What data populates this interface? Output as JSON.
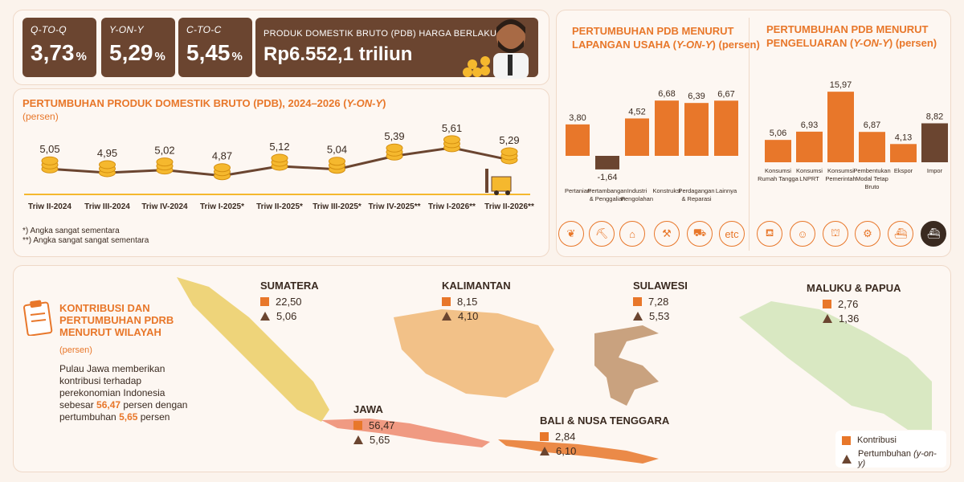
{
  "kpis": [
    {
      "label": "Q-TO-Q",
      "value": "3,73",
      "unit": "%"
    },
    {
      "label": "Y-ON-Y",
      "value": "5,29",
      "unit": "%"
    },
    {
      "label": "C-TO-C",
      "value": "5,45",
      "unit": "%"
    }
  ],
  "pdb_card": {
    "label": "PRODUK DOMESTIK BRUTO (PDB) HARGA BERLAKU",
    "value": "Rp6.552,1 triliun"
  },
  "line_title": "PERTUMBUHAN PRODUK DOMESTIK BRUTO (PDB), 2024–2026 (",
  "line_title_em": "Y-ON-Y",
  "line_title_end": ")",
  "line_unit": "(persen)",
  "notes": [
    "*) Angka sangat sementara",
    "**) Angka sangat sangat sementara"
  ],
  "bar1_title_a": "PERTUMBUHAN PDB MENURUT",
  "bar1_title_b": "LAPANGAN USAHA (",
  "bar1_title_em": "Y-ON-Y",
  "bar1_title_c": ") (persen)",
  "bar2_title_a": "PERTUMBUHAN PDB MENURUT",
  "bar2_title_b": "PENGELUARAN (",
  "bar2_title_em": "Y-ON-Y",
  "bar2_title_c": ") (persen)",
  "icons_usaha": [
    "leaf-icon",
    "oil-pump-icon",
    "factory-icon",
    "crane-icon",
    "truck-icon",
    "handshake-icon",
    "etc-icon"
  ],
  "icons_pengeluaran": [
    "shopping-icon",
    "people-icon",
    "government-icon",
    "construction-icon",
    "ship-export-icon",
    "ship-import-icon"
  ],
  "etc_label": "etc",
  "map_section": {
    "title": [
      "KONTRIBUSI DAN",
      "PERTUMBUHAN PDRB",
      "MENURUT WILAYAH"
    ],
    "unit": "(persen)",
    "desc_1": "Pulau Jawa memberikan kontribusi terhadap perekonomian Indonesia sebesar ",
    "desc_val1": "56,47",
    "desc_2": " persen dengan pertumbuhan ",
    "desc_val2": "5,65",
    "desc_3": " persen",
    "legend": {
      "kontribusi": "Kontribusi",
      "pertumbuhan": "Pertumbuhan",
      "pertumbuhan_em": "(y-on-y)"
    },
    "regions": [
      {
        "name": "SUMATERA",
        "kontribusi": "22,50",
        "pertumbuhan": "5,06"
      },
      {
        "name": "KALIMANTAN",
        "kontribusi": "8,15",
        "pertumbuhan": "4,10"
      },
      {
        "name": "SULAWESI",
        "kontribusi": "7,28",
        "pertumbuhan": "5,53"
      },
      {
        "name": "MALUKU & PAPUA",
        "kontribusi": "2,76",
        "pertumbuhan": "1,36"
      },
      {
        "name": "JAWA",
        "kontribusi": "56,47",
        "pertumbuhan": "5,65"
      },
      {
        "name": "BALI & NUSA TENGGARA",
        "kontribusi": "2,84",
        "pertumbuhan": "6,10"
      }
    ]
  },
  "colors": {
    "orange": "#e8772a",
    "brown": "#6b4530",
    "bg": "#fbf3ec"
  },
  "chart_data": [
    {
      "type": "line",
      "title": "PERTUMBUHAN PRODUK DOMESTIK BRUTO (PDB), 2024–2026 (Y-ON-Y)",
      "ylabel": "(persen)",
      "categories": [
        "Triw II-2024",
        "Triw III-2024",
        "Triw IV-2024",
        "Triw I-2025*",
        "Triw II-2025*",
        "Triw III-2025*",
        "Triw IV-2025**",
        "Triw I-2026**",
        "Triw II-2026**"
      ],
      "values": [
        5.05,
        4.95,
        5.02,
        4.87,
        5.12,
        5.04,
        5.39,
        5.61,
        5.29
      ],
      "labels": [
        "5,05",
        "4,95",
        "5,02",
        "4,87",
        "5,12",
        "5,04",
        "5,39",
        "5,61",
        "5,29"
      ]
    },
    {
      "type": "bar",
      "title": "PERTUMBUHAN PDB MENURUT LAPANGAN USAHA (Y-ON-Y) (persen)",
      "categories": [
        "Pertanian",
        "Pertambangan & Penggalian",
        "Industri Pengolahan",
        "Konstruksi",
        "Perdagangan & Reparasi",
        "Lainnya"
      ],
      "cat_lines": [
        [
          "Pertanian"
        ],
        [
          "Pertambangan",
          "& Penggalian"
        ],
        [
          "Industri",
          "Pengolahan"
        ],
        [
          "Konstruksi"
        ],
        [
          "Perdagangan",
          "& Reparasi"
        ],
        [
          "Lainnya"
        ]
      ],
      "values": [
        3.8,
        -1.64,
        4.52,
        6.68,
        6.39,
        6.67
      ],
      "labels": [
        "3,80",
        "-1,64",
        "4,52",
        "6,68",
        "6,39",
        "6,67"
      ]
    },
    {
      "type": "bar",
      "title": "PERTUMBUHAN PDB MENURUT PENGELUARAN (Y-ON-Y) (persen)",
      "categories": [
        "Konsumsi Rumah Tangga",
        "Konsumsi LNPRT",
        "Konsumsi Pemerintah",
        "Pembentukan Modal Tetap Bruto",
        "Ekspor",
        "Impor"
      ],
      "cat_lines": [
        [
          "Konsumsi",
          "Rumah Tangga"
        ],
        [
          "Konsumsi",
          "LNPRT"
        ],
        [
          "Konsumsi",
          "Pemerintah"
        ],
        [
          "Pembentukan",
          "Modal Tetap",
          "Bruto"
        ],
        [
          "Ekspor"
        ],
        [
          "Impor"
        ]
      ],
      "values": [
        5.06,
        6.93,
        15.97,
        6.87,
        4.13,
        8.82
      ],
      "labels": [
        "5,06",
        "6,93",
        "15,97",
        "6,87",
        "4,13",
        "8,82"
      ]
    }
  ]
}
